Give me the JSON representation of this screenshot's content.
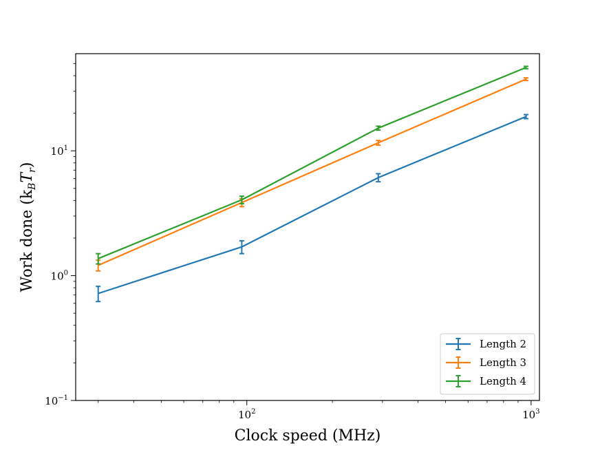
{
  "chart_data": {
    "type": "line",
    "title": "",
    "xlabel": "Clock speed (MHz)",
    "ylabel": "Work done (k",
    "ylabel_sub1": "B",
    "ylabel_mid": "T",
    "ylabel_sub2": "r",
    "ylabel_end": ")",
    "xscale": "log",
    "yscale": "log",
    "xlim": [
      25,
      1070
    ],
    "ylim": [
      0.1,
      60
    ],
    "x_major_ticks": [
      {
        "value": 100,
        "base": "10",
        "exp": "2"
      },
      {
        "value": 1000,
        "base": "10",
        "exp": "3"
      }
    ],
    "y_major_ticks": [
      {
        "value": 0.1,
        "base": "10",
        "exp": "−1"
      },
      {
        "value": 1,
        "base": "10",
        "exp": "0"
      },
      {
        "value": 10,
        "base": "10",
        "exp": "1"
      }
    ],
    "legend_position": "lower-right",
    "series": [
      {
        "name": "Length 2",
        "color": "#1f77b4",
        "x": [
          30,
          96,
          290,
          960
        ],
        "y": [
          0.72,
          1.7,
          6.1,
          18.8
        ],
        "yerr": [
          0.1,
          0.2,
          0.45,
          0.7
        ]
      },
      {
        "name": "Length 3",
        "color": "#ff7f0e",
        "x": [
          30,
          96,
          290,
          960
        ],
        "y": [
          1.21,
          3.85,
          11.6,
          37.5
        ],
        "yerr": [
          0.12,
          0.28,
          0.5,
          0.9
        ]
      },
      {
        "name": "Length 4",
        "color": "#2ca02c",
        "x": [
          30,
          96,
          290,
          960
        ],
        "y": [
          1.37,
          4.05,
          15.2,
          46.5
        ],
        "yerr": [
          0.13,
          0.28,
          0.55,
          1.0
        ]
      }
    ]
  }
}
